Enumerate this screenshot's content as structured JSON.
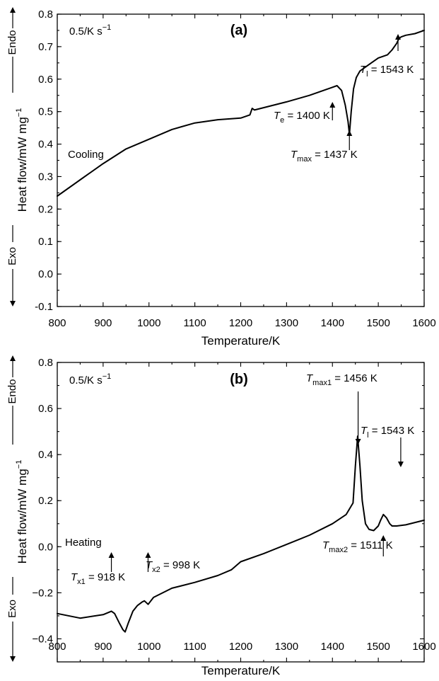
{
  "chart_data": [
    {
      "type": "line",
      "panel_label": "(a)",
      "rate_label": "0.5/K s",
      "rate_exp": "−1",
      "curve_label": "Cooling",
      "xlabel": "Temperature/K",
      "ylabel": "Heat flow/mW mg",
      "ylabel_exp": "−1",
      "endo_label": "Endo",
      "exo_label": "Exo",
      "xlim": [
        800,
        1600
      ],
      "ylim": [
        -0.1,
        0.8
      ],
      "xticks": [
        800,
        900,
        1000,
        1100,
        1200,
        1300,
        1400,
        1500,
        1600
      ],
      "yticks": [
        "-0.1",
        "0.0",
        "0.1",
        "0.2",
        "0.3",
        "0.4",
        "0.5",
        "0.6",
        "0.7",
        "0.8"
      ],
      "series": [
        {
          "x": [
            800,
            850,
            900,
            950,
            1000,
            1050,
            1100,
            1150,
            1200,
            1220,
            1225,
            1230,
            1300,
            1350,
            1400,
            1410,
            1420,
            1428,
            1434,
            1437,
            1441,
            1446,
            1452,
            1460,
            1480,
            1500,
            1520,
            1530,
            1540,
            1545,
            1550,
            1560,
            1580,
            1600
          ],
          "y": [
            0.24,
            0.29,
            0.34,
            0.385,
            0.415,
            0.445,
            0.465,
            0.475,
            0.48,
            0.49,
            0.51,
            0.505,
            0.53,
            0.55,
            0.575,
            0.58,
            0.565,
            0.52,
            0.47,
            0.43,
            0.5,
            0.57,
            0.605,
            0.625,
            0.645,
            0.665,
            0.675,
            0.69,
            0.71,
            0.725,
            0.73,
            0.735,
            0.74,
            0.75
          ]
        }
      ],
      "annotations": [
        {
          "sym": "T",
          "sub": "e",
          "text": " = 1400 K",
          "arrow_x": 1400
        },
        {
          "sym": "T",
          "sub": "max",
          "text": " = 1437 K",
          "arrow_x": 1437
        },
        {
          "sym": "T",
          "sub": "l",
          "text": " = 1543 K",
          "arrow_x": 1543
        }
      ]
    },
    {
      "type": "line",
      "panel_label": "(b)",
      "rate_label": "0.5/K s",
      "rate_exp": "−1",
      "curve_label": "Heating",
      "xlabel": "Temperature/K",
      "ylabel": "Heat flow/mW mg",
      "ylabel_exp": "−1",
      "endo_label": "Endo",
      "exo_label": "Exo",
      "xlim": [
        800,
        1600
      ],
      "ylim": [
        -0.5,
        0.8
      ],
      "xticks": [
        800,
        900,
        1000,
        1100,
        1200,
        1300,
        1400,
        1500,
        1600
      ],
      "yticks": [
        "−0.4",
        "−0.2",
        "0.0",
        "0.2",
        "0.4",
        "0.6",
        "0.8"
      ],
      "series": [
        {
          "x": [
            800,
            850,
            900,
            918,
            925,
            935,
            943,
            948,
            955,
            965,
            975,
            985,
            990,
            998,
            1010,
            1050,
            1100,
            1150,
            1180,
            1200,
            1250,
            1300,
            1350,
            1400,
            1430,
            1445,
            1450,
            1455,
            1460,
            1465,
            1472,
            1480,
            1490,
            1500,
            1505,
            1511,
            1518,
            1525,
            1530,
            1540,
            1560,
            1580,
            1600
          ],
          "y": [
            -0.29,
            -0.31,
            -0.295,
            -0.28,
            -0.29,
            -0.33,
            -0.36,
            -0.37,
            -0.33,
            -0.28,
            -0.255,
            -0.24,
            -0.235,
            -0.25,
            -0.22,
            -0.18,
            -0.155,
            -0.125,
            -0.1,
            -0.065,
            -0.03,
            0.01,
            0.05,
            0.1,
            0.14,
            0.19,
            0.35,
            0.48,
            0.35,
            0.2,
            0.1,
            0.075,
            0.07,
            0.09,
            0.115,
            0.14,
            0.125,
            0.1,
            0.09,
            0.09,
            0.095,
            0.105,
            0.115
          ]
        }
      ],
      "annotations": [
        {
          "sym": "T",
          "sub": "max1",
          "text": " = 1456 K",
          "arrow_x": 1456
        },
        {
          "sym": "T",
          "sub": "l",
          "text": " = 1543 K",
          "arrow_x": 1543
        },
        {
          "sym": "T",
          "sub": "max2",
          "text": " = 1511 K",
          "arrow_x": 1511
        },
        {
          "sym": "T",
          "sub": "x1",
          "text": " = 918 K",
          "arrow_x": 918
        },
        {
          "sym": "T",
          "sub": "x2",
          "text": " = 998 K",
          "arrow_x": 998
        }
      ]
    }
  ]
}
